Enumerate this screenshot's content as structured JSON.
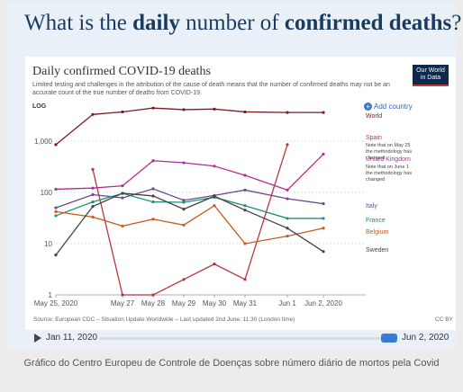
{
  "headline": {
    "prefix": "What is the ",
    "bold1": "daily",
    "middle": " number of ",
    "bold2": "confirmed deaths",
    "suffix": "?"
  },
  "logo": {
    "line1": "Our World",
    "line2": "in Data"
  },
  "add_country_label": "Add country",
  "source": "Source: European CDC – Situation Update Worldwide – Last updated 2nd June, 11:30 (London time)",
  "license": "CC BY",
  "timeline": {
    "start_label": "Jan 11, 2020",
    "end_label": "Jun 2, 2020",
    "position": 1.0
  },
  "caption": "Gráfico do Centro Europeu de Controle de Doenças sobre número diário de mortos pela Covid",
  "colors": {
    "World": "#7b1a1a",
    "Spain": "#b5383d",
    "United Kingdom": "#b32c8f",
    "Italy": "#6b4a8e",
    "France": "#1f8f7f",
    "Belgium": "#c85a1e",
    "Sweden": "#444444"
  },
  "chart_data": {
    "type": "line",
    "title": "Daily confirmed COVID-19 deaths",
    "subtitle": "Limited testing and challenges in the attribution of the cause of death means that the number of confirmed deaths may not be an accurate count of the true number of deaths from COVID-19.",
    "yscale": "LOG",
    "yticks": [
      1,
      10,
      100,
      1000
    ],
    "ytick_labels": [
      "1",
      "10",
      "100",
      "1,000"
    ],
    "ylim": [
      1,
      5000
    ],
    "x": [
      "May 25, 2020",
      "May 26",
      "May 27",
      "May 28",
      "May 29",
      "May 30",
      "May 31",
      "Jun 1",
      "Jun 2, 2020"
    ],
    "xtick_labels": [
      "May 25, 2020",
      "May 27",
      "May 28",
      "May 29",
      "May 30",
      "May 31",
      "Jun 1",
      "Jun 2, 2020"
    ],
    "xtick_dates": [
      "May 25, 2020",
      "May 27",
      "May 28",
      "May 29",
      "May 30",
      "May 31",
      "Jun 1",
      "Jun 2, 2020"
    ],
    "series": [
      {
        "name": "World",
        "values": [
          850,
          3300,
          3700,
          4400,
          4100,
          4200,
          3700,
          3600,
          3600
        ],
        "note": ""
      },
      {
        "name": "Spain",
        "values": [
          null,
          280,
          1,
          1,
          2,
          4,
          2,
          850,
          null
        ],
        "note": "Note that on May 25 the methodology has changed"
      },
      {
        "name": "United Kingdom",
        "values": [
          115,
          121,
          134,
          413,
          377,
          324,
          215,
          111,
          556
        ],
        "note": "Note that on June 1 the methodology has changed"
      },
      {
        "name": "Italy",
        "values": [
          50,
          90,
          78,
          117,
          70,
          87,
          111,
          75,
          60
        ],
        "note": ""
      },
      {
        "name": "France",
        "values": [
          35,
          65,
          95,
          65,
          64,
          80,
          55,
          31,
          31
        ],
        "note": ""
      },
      {
        "name": "Belgium",
        "values": [
          42,
          33,
          22,
          30,
          23,
          55,
          10,
          14,
          20
        ],
        "note": ""
      },
      {
        "name": "Sweden",
        "values": [
          6,
          53,
          96,
          85,
          47,
          84,
          45,
          20,
          7
        ],
        "note": ""
      }
    ]
  }
}
